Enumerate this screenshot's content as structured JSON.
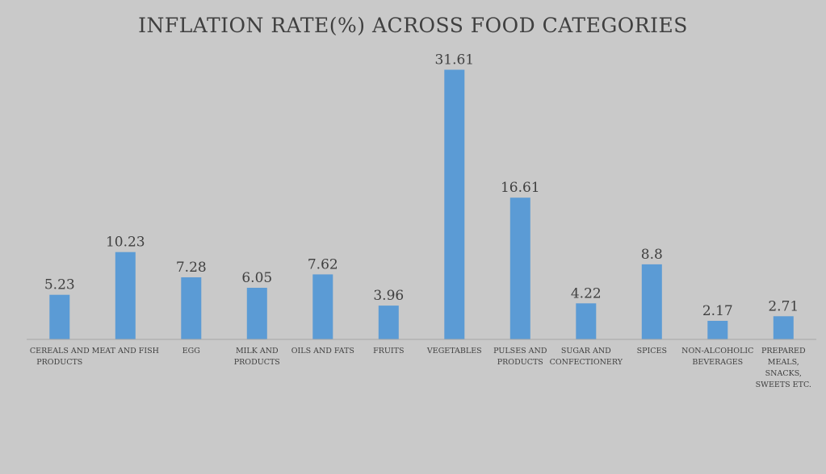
{
  "chart_data": {
    "type": "bar",
    "title": "INFLATION RATE(%) ACROSS FOOD CATEGORIES",
    "xlabel": "",
    "ylabel": "",
    "ylim": [
      0,
      33
    ],
    "grid": false,
    "legend": "none",
    "categories": [
      [
        "CEREALS AND",
        "PRODUCTS"
      ],
      [
        "MEAT AND FISH"
      ],
      [
        "EGG"
      ],
      [
        "MILK AND",
        "PRODUCTS"
      ],
      [
        "OILS AND FATS"
      ],
      [
        "FRUITS"
      ],
      [
        "VEGETABLES"
      ],
      [
        "PULSES AND",
        "PRODUCTS"
      ],
      [
        "SUGAR AND",
        "CONFECTIONERY"
      ],
      [
        "SPICES"
      ],
      [
        "NON-ALCOHOLIC",
        "BEVERAGES"
      ],
      [
        "PREPARED",
        "MEALS,",
        "SNACKS,",
        "SWEETS ETC."
      ]
    ],
    "values": [
      5.23,
      10.23,
      7.28,
      6.05,
      7.62,
      3.96,
      31.61,
      16.61,
      4.22,
      8.8,
      2.17,
      2.71
    ],
    "value_labels": [
      "5.23",
      "10.23",
      "7.28",
      "6.05",
      "7.62",
      "3.96",
      "31.61",
      "16.61",
      "4.22",
      "8.8",
      "2.17",
      "2.71"
    ],
    "colors": {
      "bar": "#5b9bd5",
      "axis": "#a6a6a6",
      "background": "#c9c9c9"
    }
  }
}
